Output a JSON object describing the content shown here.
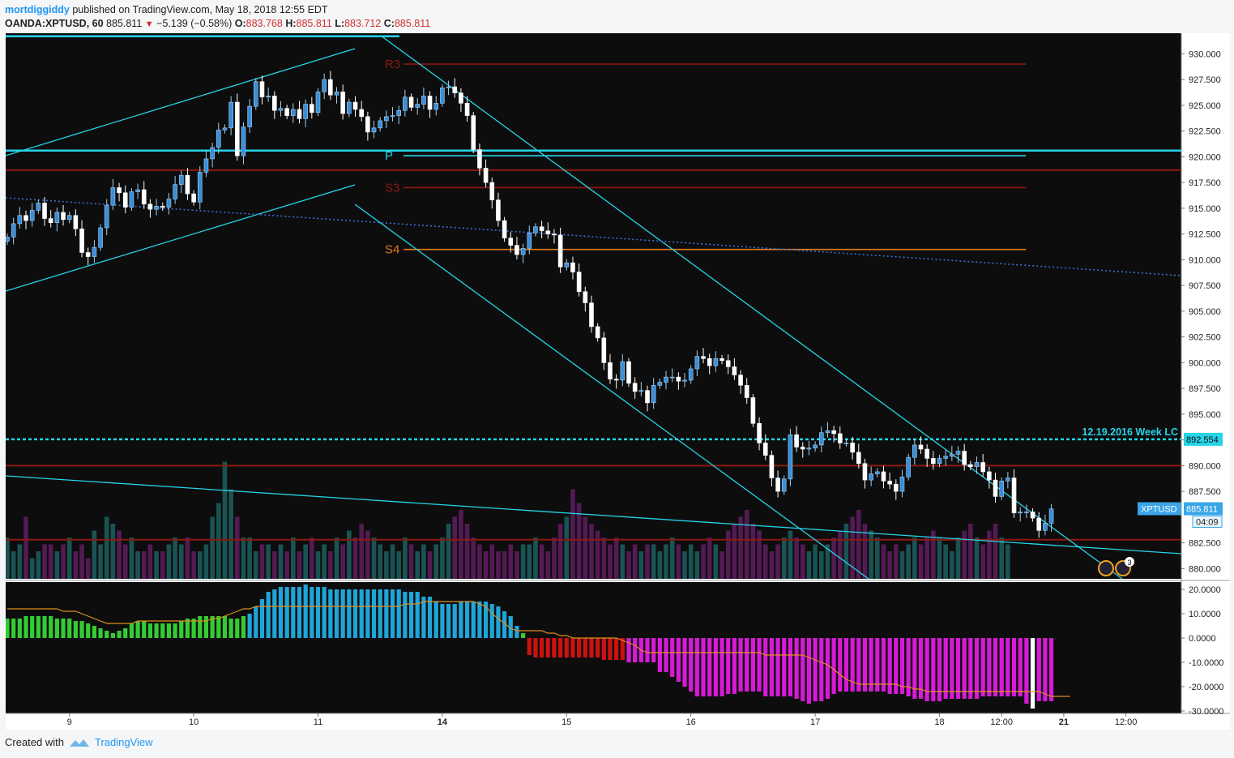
{
  "header": {
    "user": "mortdiggiddy",
    "published_text": " published on TradingView.com, May 18, 2018 12:55 EDT",
    "symbol": "OANDA:XPTUSD, 60",
    "last": "885.811",
    "change": "−5.139 (−0.58%)",
    "o_label": "O:",
    "o_value": "883.768",
    "h_label": "H:",
    "h_value": "885.811",
    "l_label": "L:",
    "l_value": "883.712",
    "c_label": "C:",
    "c_value": "885.811"
  },
  "footer": {
    "created_with": "Created with",
    "brand": "TradingView"
  },
  "colors": {
    "background": "#0d0d0d",
    "up_candle": "#3a8ed8",
    "down_candle": "#ffffff",
    "cyan": "#26d4e8",
    "pivot_red": "#8b1a10",
    "s4_orange": "#e07a1f",
    "dotted_blue": "#3b6fd8",
    "hist_green": "#33cc33",
    "hist_blue": "#1fa5d8",
    "hist_red": "#cc1111",
    "hist_magenta": "#d61ad6",
    "signal_orange": "#e0901f"
  },
  "chart_data": {
    "type": "candlestick",
    "symbol": "XPTUSD",
    "timeframe": "60",
    "price_axis": {
      "ylim": [
        879.0,
        932.0
      ],
      "ticks": [
        "930.000",
        "927.500",
        "925.000",
        "922.500",
        "920.000",
        "917.500",
        "915.000",
        "912.500",
        "910.000",
        "907.500",
        "905.000",
        "902.500",
        "900.000",
        "897.500",
        "895.000",
        "892.500",
        "890.000",
        "887.500",
        "882.500",
        "880.000"
      ]
    },
    "time_axis": {
      "ticks": [
        {
          "label": "9",
          "bar": 10
        },
        {
          "label": "10",
          "bar": 30
        },
        {
          "label": "11",
          "bar": 50
        },
        {
          "label": "14",
          "bar": 70
        },
        {
          "label": "15",
          "bar": 90
        },
        {
          "label": "16",
          "bar": 110
        },
        {
          "label": "17",
          "bar": 130
        },
        {
          "label": "18",
          "bar": 150
        },
        {
          "label": "12:00",
          "bar": 160
        },
        {
          "label": "21",
          "bar": 170
        },
        {
          "label": "12:00",
          "bar": 180
        }
      ],
      "bold_labels": [
        "14",
        "21"
      ]
    },
    "closes": [
      912.2,
      913.5,
      914.3,
      913.8,
      914.8,
      915.5,
      914.0,
      913.6,
      914.6,
      913.9,
      914.3,
      913.0,
      910.7,
      910.3,
      911.2,
      913.1,
      915.3,
      917.0,
      916.5,
      915.1,
      916.6,
      916.8,
      915.4,
      914.9,
      915.2,
      915.1,
      915.9,
      917.3,
      918.2,
      916.4,
      915.6,
      918.5,
      919.8,
      920.9,
      922.6,
      922.8,
      925.3,
      920.1,
      922.9,
      924.9,
      927.3,
      925.8,
      925.9,
      924.5,
      924.7,
      924.0,
      924.6,
      923.7,
      925.1,
      924.3,
      926.3,
      927.5,
      926.0,
      926.3,
      924.2,
      925.3,
      924.6,
      923.9,
      922.4,
      922.8,
      923.5,
      923.9,
      924.0,
      924.5,
      925.8,
      924.8,
      925.1,
      925.9,
      924.6,
      925.2,
      926.7,
      926.8,
      926.2,
      925.2,
      924.0,
      920.7,
      918.9,
      917.5,
      915.8,
      913.8,
      912.1,
      911.4,
      910.5,
      911.1,
      912.6,
      913.2,
      912.8,
      912.5,
      912.4,
      909.3,
      909.7,
      908.8,
      906.9,
      905.8,
      903.5,
      902.4,
      900.0,
      898.4,
      898.3,
      900.1,
      898.0,
      897.2,
      897.3,
      896.1,
      897.8,
      898.1,
      898.6,
      898.6,
      898.2,
      898.3,
      899.4,
      900.6,
      900.4,
      899.7,
      900.4,
      900.2,
      899.6,
      898.8,
      897.8,
      896.6,
      894.1,
      892.2,
      891.0,
      888.8,
      887.5,
      888.7,
      893.0,
      891.8,
      891.6,
      891.7,
      892.0,
      893.2,
      893.4,
      893.1,
      892.2,
      892.2,
      891.3,
      890.2,
      888.6,
      889.2,
      889.4,
      888.5,
      888.2,
      887.5,
      888.9,
      890.8,
      892.0,
      891.6,
      890.7,
      890.2,
      890.7,
      890.9,
      891.1,
      891.4,
      890.1,
      889.9,
      890.3,
      889.4,
      888.6,
      887.0,
      888.5,
      888.8,
      885.4,
      885.5,
      885.5,
      884.9,
      883.7,
      884.4,
      885.8
    ],
    "volume": [
      6,
      4,
      5,
      9,
      3,
      4,
      5,
      5,
      4,
      5,
      6,
      4,
      5,
      3,
      7,
      5,
      9,
      8,
      7,
      5,
      6,
      4,
      4,
      5,
      4,
      4,
      5,
      6,
      5,
      6,
      4,
      4,
      5,
      9,
      11,
      17,
      13,
      9,
      6,
      6,
      4,
      5,
      5,
      4,
      5,
      4,
      6,
      4,
      5,
      6,
      4,
      5,
      4,
      6,
      5,
      7,
      6,
      8,
      7,
      6,
      5,
      4,
      5,
      4,
      6,
      5,
      4,
      5,
      4,
      5,
      6,
      8,
      9,
      10,
      8,
      6,
      5,
      4,
      5,
      4,
      4,
      5,
      4,
      5,
      5,
      6,
      5,
      4,
      6,
      8,
      9,
      13,
      11,
      9,
      8,
      7,
      6,
      5,
      6,
      5,
      4,
      5,
      4,
      5,
      5,
      4,
      5,
      6,
      5,
      4,
      5,
      4,
      5,
      6,
      5,
      4,
      7,
      8,
      9,
      10,
      8,
      7,
      5,
      4,
      5,
      6,
      7,
      6,
      5,
      4,
      5,
      4,
      5,
      6,
      7,
      8,
      9,
      10,
      8,
      7,
      6,
      5,
      4,
      5,
      4,
      5,
      6,
      5,
      6,
      7,
      6,
      5,
      4,
      6,
      7,
      8,
      6,
      5,
      7,
      8,
      6,
      5
    ],
    "volume_purple_mask": "downs",
    "macd": {
      "ylim": [
        -31,
        23
      ],
      "ticks": [
        "20.0000",
        "10.0000",
        "0.0000",
        "-10.0000",
        "-20.0000",
        "-30.0000"
      ],
      "histogram": [
        8,
        8,
        8,
        9,
        9,
        9,
        9,
        9,
        8,
        8,
        8,
        7,
        7,
        6,
        5,
        4,
        3,
        2,
        3,
        4,
        6,
        7,
        7,
        6,
        6,
        6,
        6,
        6,
        7,
        8,
        8,
        9,
        9,
        9,
        9,
        9,
        8,
        8,
        9,
        10,
        13,
        16,
        19,
        20,
        21,
        21,
        21,
        21,
        22,
        21,
        21,
        21,
        20,
        20,
        20,
        20,
        20,
        20,
        20,
        20,
        20,
        20,
        20,
        20,
        19,
        19,
        19,
        17,
        17,
        15,
        14,
        14,
        14,
        15,
        15,
        15,
        15,
        15,
        14,
        13,
        11,
        9,
        5,
        2,
        -7,
        -8,
        -8,
        -8,
        -8,
        -8,
        -8,
        -8,
        -8,
        -8,
        -8,
        -8,
        -9,
        -9,
        -9,
        -9,
        -10,
        -10,
        -10,
        -10,
        -10,
        -14,
        -14,
        -16,
        -18,
        -20,
        -22,
        -24,
        -24,
        -24,
        -24,
        -24,
        -23,
        -23,
        -22,
        -22,
        -22,
        -22,
        -24,
        -24,
        -24,
        -24,
        -24,
        -25,
        -26,
        -27,
        -26,
        -26,
        -25,
        -23,
        -22,
        -22,
        -22,
        -22,
        -22,
        -22,
        -22,
        -22,
        -23,
        -23,
        -23,
        -24,
        -25,
        -25,
        -26,
        -26,
        -26,
        -25,
        -25,
        -25,
        -25,
        -25,
        -25,
        -24,
        -24,
        -24,
        -24,
        -24,
        -24,
        -24,
        -27,
        -29,
        -26,
        -26,
        -26
      ],
      "signal": [
        12,
        12,
        12,
        12,
        12,
        12,
        12,
        12,
        12,
        11,
        11,
        11,
        10,
        9,
        8,
        7,
        6,
        6,
        6,
        6,
        6,
        7,
        7,
        7,
        7,
        7,
        7,
        7,
        7,
        7,
        7,
        7,
        7,
        8,
        8,
        9,
        10,
        11,
        12,
        12,
        13,
        13,
        13,
        13,
        13,
        13,
        13,
        13,
        13,
        13,
        13,
        13,
        13,
        13,
        13,
        13,
        13,
        13,
        13,
        13,
        13,
        13,
        13,
        13,
        14,
        14,
        14,
        15,
        15,
        15,
        15,
        15,
        15,
        15,
        15,
        15,
        14,
        13,
        10,
        8,
        6,
        4,
        3,
        3,
        3,
        3,
        3,
        2,
        2,
        1,
        1,
        0,
        0,
        0,
        0,
        0,
        0,
        0,
        0,
        -1,
        -2,
        -3,
        -5,
        -6,
        -6,
        -6,
        -6,
        -6,
        -6,
        -6,
        -6,
        -6,
        -6,
        -6,
        -6,
        -6,
        -6,
        -6,
        -6,
        -6,
        -6,
        -6,
        -7,
        -7,
        -7,
        -7,
        -7,
        -7,
        -7,
        -8,
        -9,
        -10,
        -11,
        -13,
        -15,
        -17,
        -18,
        -19,
        -19,
        -19,
        -19,
        -19,
        -19,
        -19,
        -20,
        -20,
        -21,
        -21,
        -22,
        -22,
        -22,
        -22,
        -22,
        -22,
        -22,
        -22,
        -22,
        -22,
        -22,
        -22,
        -22,
        -22,
        -22,
        -22,
        -22,
        -22,
        -22,
        -23,
        -24,
        -24,
        -24,
        -24
      ]
    },
    "levels": [
      {
        "label": "R3",
        "price": 929.0,
        "color": "pivot_red"
      },
      {
        "label": "P",
        "price": 920.1,
        "color": "cyan"
      },
      {
        "label": "S3",
        "price": 917.0,
        "color": "pivot_red"
      },
      {
        "label": "S4",
        "price": 911.0,
        "color": "s4_orange"
      }
    ],
    "horizontal_lines": [
      {
        "price": 931.7,
        "color": "cyan"
      },
      {
        "price": 920.6,
        "color": "cyan"
      },
      {
        "price": 918.7,
        "color": "pivot_red"
      },
      {
        "price": 892.554,
        "color": "cyan",
        "dashed": true,
        "label": "12.19.2016 Week LC"
      },
      {
        "price": 890.0,
        "color": "pivot_red"
      },
      {
        "price": 882.8,
        "color": "pivot_red"
      }
    ],
    "price_tags": {
      "week_lc": "892.554",
      "symbol_tag": "XPTUSD",
      "last_price": "885.811",
      "countdown": "04:09"
    },
    "event_badge_count": "3"
  }
}
